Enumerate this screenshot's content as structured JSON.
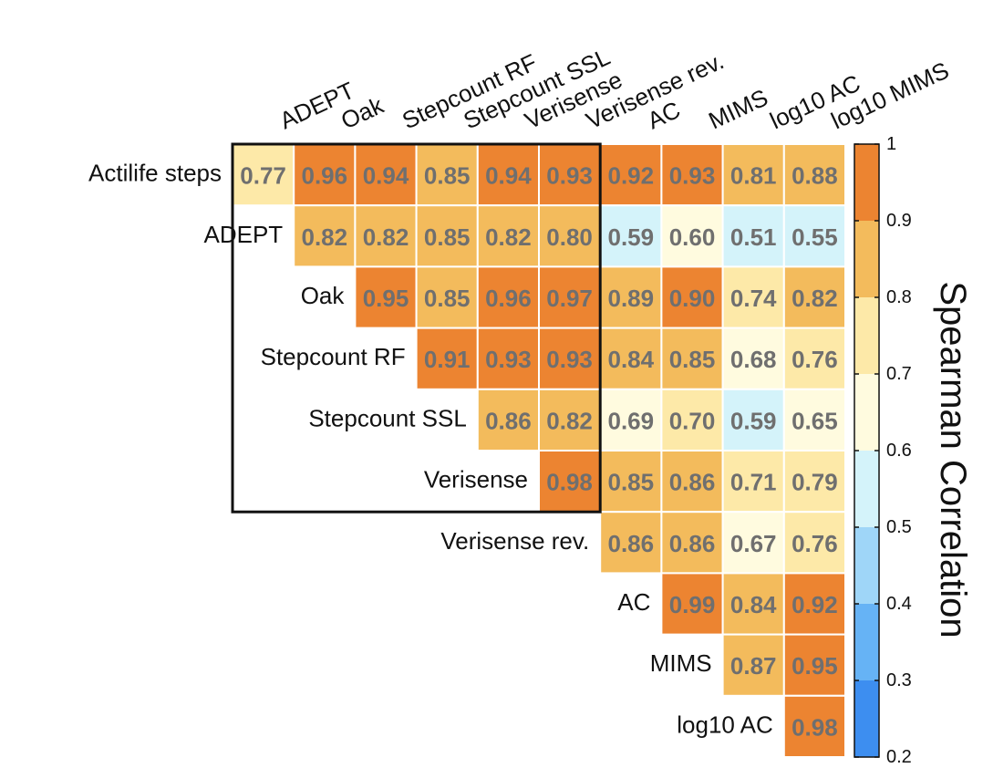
{
  "chart_data": {
    "type": "heatmap",
    "title": "",
    "column_labels": [
      "ADEPT",
      "Oak",
      "Stepcount RF",
      "Stepcount SSL",
      "Verisense",
      "Verisense rev.",
      "AC",
      "MIMS",
      "log10 AC",
      "log10 MIMS"
    ],
    "row_labels": [
      "Actilife steps",
      "ADEPT",
      "Oak",
      "Stepcount RF",
      "Stepcount SSL",
      "Verisense",
      "Verisense rev.",
      "AC",
      "MIMS",
      "log10 AC"
    ],
    "values": [
      [
        0.77,
        0.96,
        0.94,
        0.85,
        0.94,
        0.93,
        0.92,
        0.93,
        0.81,
        0.88
      ],
      [
        null,
        0.82,
        0.82,
        0.85,
        0.82,
        0.8,
        0.59,
        0.6,
        0.51,
        0.55
      ],
      [
        null,
        null,
        0.95,
        0.85,
        0.96,
        0.97,
        0.89,
        0.9,
        0.74,
        0.82
      ],
      [
        null,
        null,
        null,
        0.91,
        0.93,
        0.93,
        0.84,
        0.85,
        0.68,
        0.76
      ],
      [
        null,
        null,
        null,
        null,
        0.86,
        0.82,
        0.69,
        0.7,
        0.59,
        0.65
      ],
      [
        null,
        null,
        null,
        null,
        null,
        0.98,
        0.85,
        0.86,
        0.71,
        0.79
      ],
      [
        null,
        null,
        null,
        null,
        null,
        null,
        0.86,
        0.86,
        0.67,
        0.76
      ],
      [
        null,
        null,
        null,
        null,
        null,
        null,
        null,
        0.99,
        0.84,
        0.92
      ],
      [
        null,
        null,
        null,
        null,
        null,
        null,
        null,
        null,
        0.87,
        0.95
      ],
      [
        null,
        null,
        null,
        null,
        null,
        null,
        null,
        null,
        null,
        0.98
      ]
    ],
    "value_labels": [
      [
        "0.77",
        "0.96",
        "0.94",
        "0.85",
        "0.94",
        "0.93",
        "0.92",
        "0.93",
        "0.81",
        "0.88"
      ],
      [
        "",
        "0.82",
        "0.82",
        "0.85",
        "0.82",
        "0.80",
        "0.59",
        "0.60",
        "0.51",
        "0.55"
      ],
      [
        "",
        "",
        "0.95",
        "0.85",
        "0.96",
        "0.97",
        "0.89",
        "0.90",
        "0.74",
        "0.82"
      ],
      [
        "",
        "",
        "",
        "0.91",
        "0.93",
        "0.93",
        "0.84",
        "0.85",
        "0.68",
        "0.76"
      ],
      [
        "",
        "",
        "",
        "",
        "0.86",
        "0.82",
        "0.69",
        "0.70",
        "0.59",
        "0.65"
      ],
      [
        "",
        "",
        "",
        "",
        "",
        "0.98",
        "0.85",
        "0.86",
        "0.71",
        "0.79"
      ],
      [
        "",
        "",
        "",
        "",
        "",
        "",
        "0.86",
        "0.86",
        "0.67",
        "0.76"
      ],
      [
        "",
        "",
        "",
        "",
        "",
        "",
        "",
        "0.99",
        "0.84",
        "0.92"
      ],
      [
        "",
        "",
        "",
        "",
        "",
        "",
        "",
        "",
        "0.87",
        "0.95"
      ],
      [
        "",
        "",
        "",
        "",
        "",
        "",
        "",
        "",
        "",
        "0.98"
      ]
    ],
    "highlight_box": {
      "row_start": 0,
      "row_end": 5,
      "col_start": 0,
      "col_end": 5
    },
    "colorbar": {
      "label": "Spearman Correlation",
      "range": [
        0.2,
        1.0
      ],
      "ticks": [
        0.2,
        0.3,
        0.4,
        0.5,
        0.6,
        0.7,
        0.8,
        0.9,
        1.0
      ],
      "tick_labels": [
        "0.2",
        "0.3",
        "0.4",
        "0.5",
        "0.6",
        "0.7",
        "0.8",
        "0.9",
        "1"
      ],
      "bins": [
        {
          "from": 0.2,
          "to": 0.3,
          "color": "#3d8ef0"
        },
        {
          "from": 0.3,
          "to": 0.4,
          "color": "#66b3f5"
        },
        {
          "from": 0.4,
          "to": 0.5,
          "color": "#9fd6f8"
        },
        {
          "from": 0.5,
          "to": 0.6,
          "color": "#d4f3fa"
        },
        {
          "from": 0.6,
          "to": 0.7,
          "color": "#fffbdf"
        },
        {
          "from": 0.7,
          "to": 0.8,
          "color": "#fde9a8"
        },
        {
          "from": 0.8,
          "to": 0.9,
          "color": "#f3bb5c"
        },
        {
          "from": 0.9,
          "to": 1.0,
          "color": "#ec8431"
        }
      ]
    }
  }
}
